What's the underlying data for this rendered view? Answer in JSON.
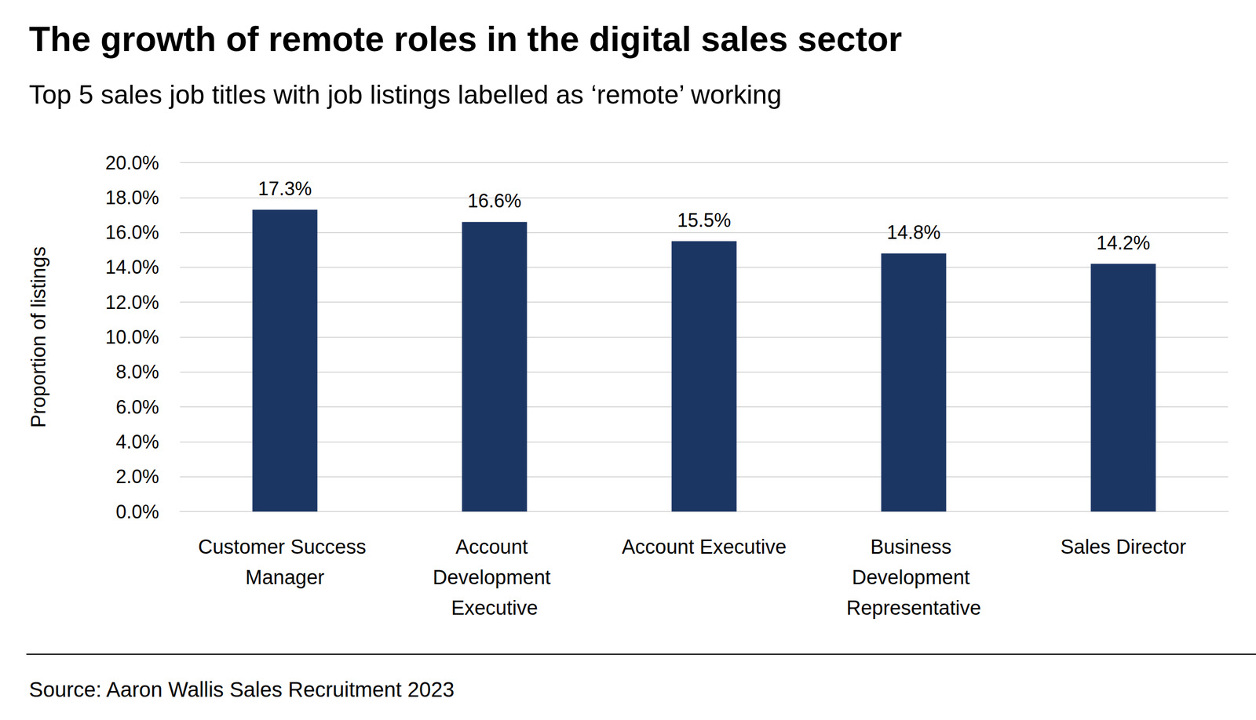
{
  "chart_data": {
    "type": "bar",
    "title": "The growth of remote roles in the digital sales sector",
    "subtitle": "Top 5 sales job titles with job listings labelled as ‘remote’ working",
    "source": "Source: Aaron Wallis Sales Recruitment 2023",
    "y_label": "Proportion of listings",
    "categories": [
      "Customer Success Manager",
      "Account Development Executive",
      "Account Executive",
      "Business Development Representative",
      "Sales Director"
    ],
    "values": [
      17.3,
      16.6,
      15.5,
      14.8,
      14.2
    ],
    "value_labels": [
      "17.3%",
      "16.6%",
      "15.5%",
      "14.8%",
      "14.2%"
    ],
    "color": "#1c3664",
    "ylim": [
      0,
      20
    ],
    "yticks": [
      {
        "value": 0,
        "label": "0.0%"
      },
      {
        "value": 2,
        "label": "2.0%"
      },
      {
        "value": 4,
        "label": "4.0%"
      },
      {
        "value": 6,
        "label": "6.0%"
      },
      {
        "value": 8,
        "label": "8.0%"
      },
      {
        "value": 10,
        "label": "10.0%"
      },
      {
        "value": 12,
        "label": "12.0%"
      },
      {
        "value": 14,
        "label": "14.0%"
      },
      {
        "value": 16,
        "label": "16.0%"
      },
      {
        "value": 18,
        "label": "18.0%"
      },
      {
        "value": 20,
        "label": "20.0%"
      }
    ],
    "grid": true,
    "data_labels": true
  }
}
